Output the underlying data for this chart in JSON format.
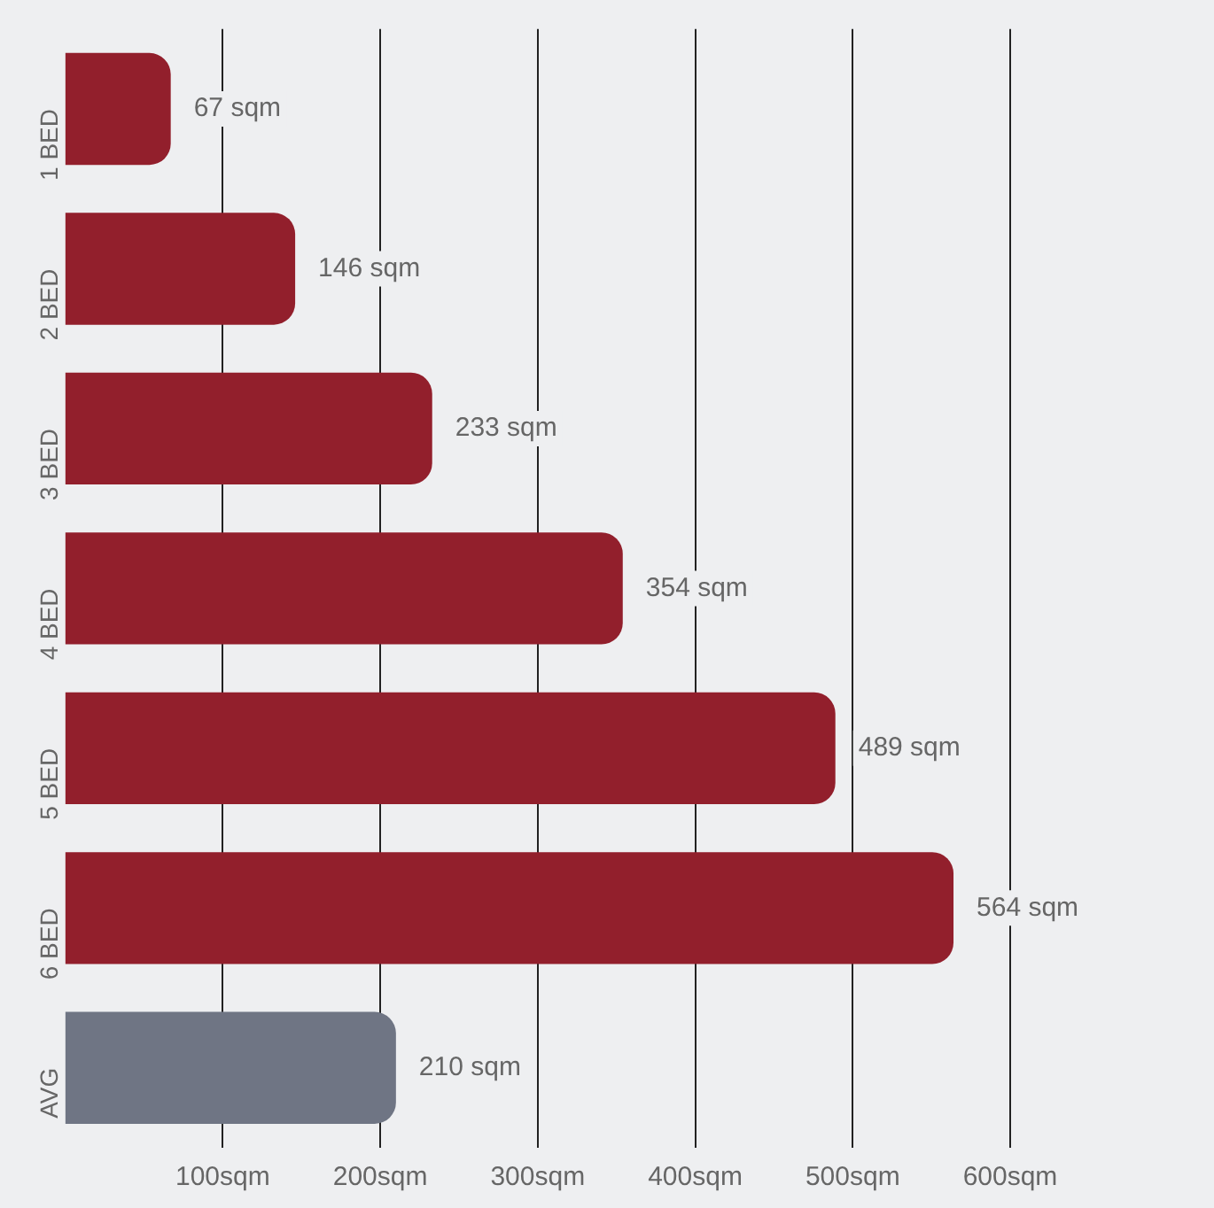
{
  "chart_data": {
    "type": "bar",
    "orientation": "horizontal",
    "categories": [
      "1 BED",
      "2 BED",
      "3 BED",
      "4 BED",
      "5 BED",
      "6 BED",
      "AVG"
    ],
    "values": [
      67,
      146,
      233,
      354,
      489,
      564,
      210
    ],
    "colors": [
      "#921f2c",
      "#921f2c",
      "#921f2c",
      "#921f2c",
      "#921f2c",
      "#921f2c",
      "#6f7584"
    ],
    "value_labels": [
      "67 sqm",
      "146 sqm",
      "233 sqm",
      "354 sqm",
      "489 sqm",
      "564 sqm",
      "210 sqm"
    ],
    "xlim": [
      0,
      600
    ],
    "xticks": [
      {
        "value": 100,
        "label": "100sqm"
      },
      {
        "value": 200,
        "label": "200sqm"
      },
      {
        "value": 300,
        "label": "300sqm"
      },
      {
        "value": 400,
        "label": "400sqm"
      },
      {
        "value": 500,
        "label": "500sqm"
      },
      {
        "value": 600,
        "label": "600sqm"
      }
    ],
    "grid": "x",
    "legend": false
  }
}
